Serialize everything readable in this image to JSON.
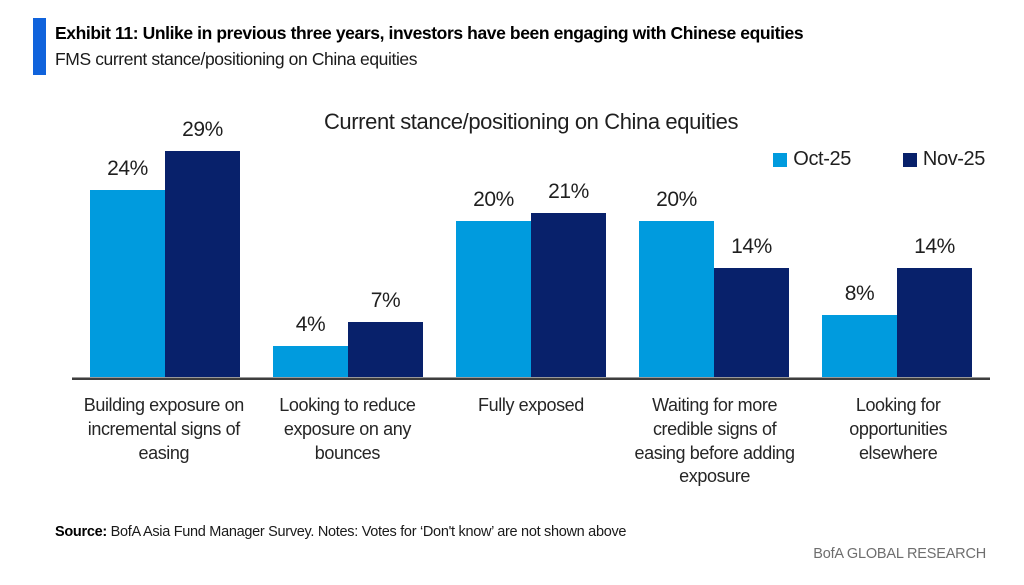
{
  "header": {
    "accent_color": "#1063dc",
    "exhibit_title": "Exhibit 11: Unlike in previous three years, investors have been engaging with Chinese equities",
    "subtitle": "FMS current stance/positioning on China equities"
  },
  "chart_data": {
    "type": "bar",
    "title": "Current stance/positioning on China equities",
    "categories": [
      "Building exposure on incremental signs of easing",
      "Looking to reduce exposure on any bounces",
      "Fully exposed",
      "Waiting for more credible signs of easing before adding exposure",
      "Looking for opportunities elsewhere"
    ],
    "series": [
      {
        "name": "Oct-25",
        "color": "#009bde",
        "values": [
          24,
          4,
          20,
          20,
          8
        ]
      },
      {
        "name": "Nov-25",
        "color": "#08216b",
        "values": [
          29,
          7,
          21,
          14,
          14
        ]
      }
    ],
    "value_suffix": "%",
    "ylim": [
      0,
      31
    ],
    "y_axis_visible": false,
    "grid": false,
    "legend_position": "top-right",
    "data_labels": true
  },
  "footer": {
    "source_label": "Source:",
    "source_text": " BofA Asia Fund Manager Survey. Notes: Votes for ‘Don't know’ are not shown above",
    "brand": "BofA GLOBAL RESEARCH"
  }
}
